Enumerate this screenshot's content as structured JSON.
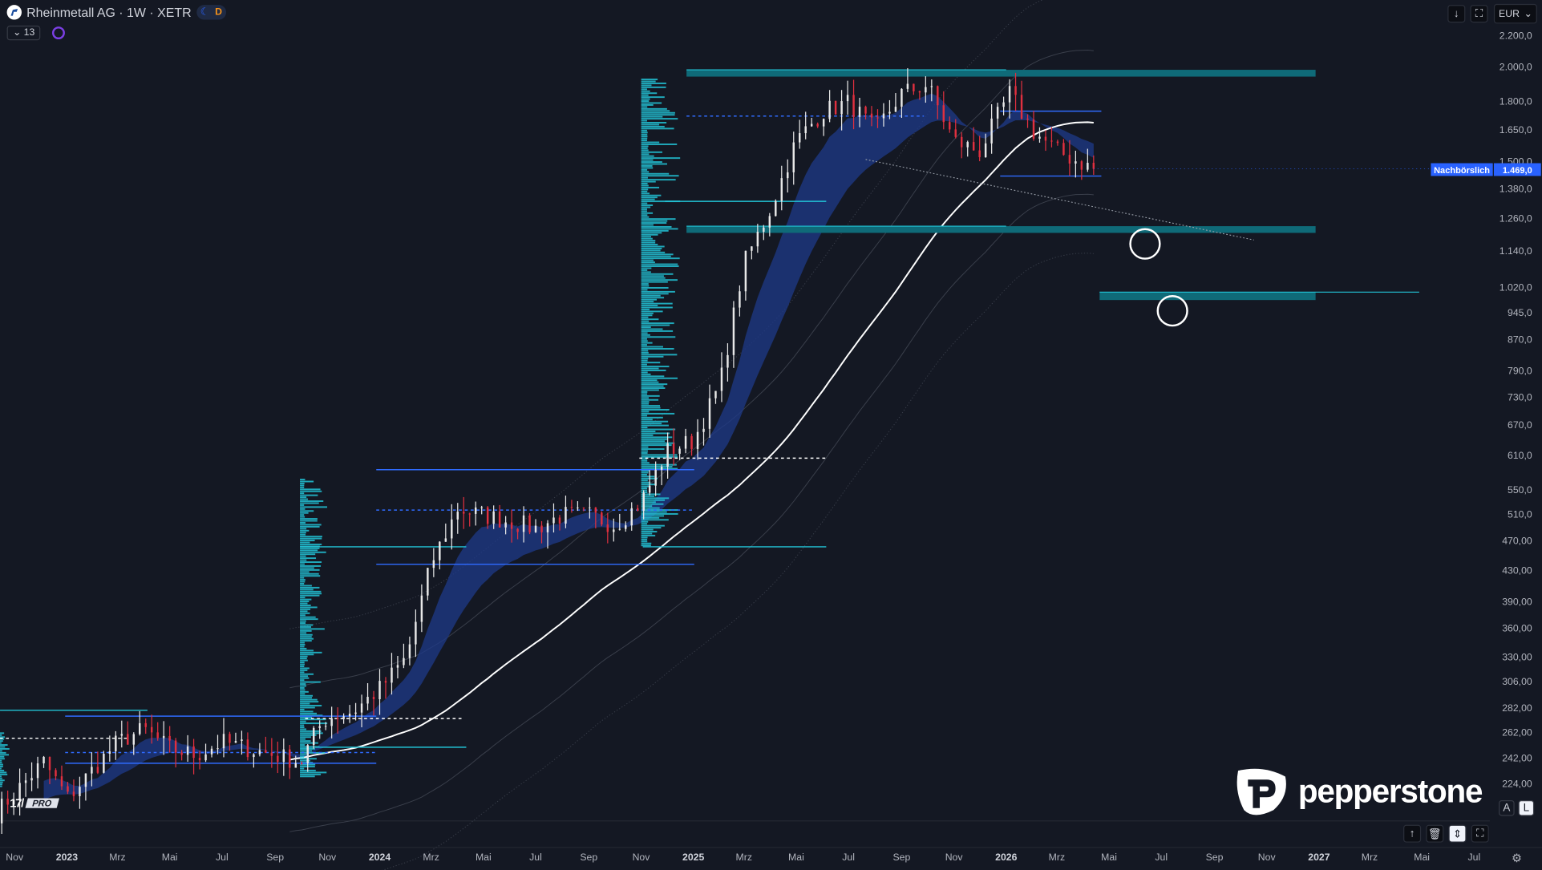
{
  "header": {
    "title": "Rheinmetall AG · 1W · XETR",
    "session_badge": "D",
    "indicators_count": "13"
  },
  "toolbar": {
    "currency": "EUR",
    "scale_labels": {
      "auto": "A",
      "log": "L"
    }
  },
  "icons": {
    "top": [
      "arrow-down-icon",
      "fullscreen-icon"
    ],
    "bottom": [
      "arrow-up-icon",
      "trash-icon",
      "expand-vertical-icon",
      "fullscreen-icon",
      "settings-icon"
    ]
  },
  "price_axis": {
    "scale": "log",
    "labels": [
      "2.200,0",
      "2.000,0",
      "1.800,0",
      "1.650,0",
      "1.500,0",
      "1.380,0",
      "1.260,0",
      "1.140,0",
      "1.020,0",
      "945,0",
      "870,0",
      "790,0",
      "730,0",
      "670,0",
      "610,0",
      "550,0",
      "510,0",
      "470,00",
      "430,00",
      "390,00",
      "360,00",
      "330,00",
      "306,00",
      "282,00",
      "262,00",
      "242,00",
      "224,00"
    ],
    "last_price": "1.469,0",
    "last_price_label": "Nachbörslich"
  },
  "time_axis": {
    "labels": [
      {
        "t": "Nov",
        "d": "2022-11-01"
      },
      {
        "t": "2023",
        "d": "2023-01-01",
        "year": true
      },
      {
        "t": "Mrz",
        "d": "2023-03-01"
      },
      {
        "t": "Mai",
        "d": "2023-05-01"
      },
      {
        "t": "Jul",
        "d": "2023-07-01"
      },
      {
        "t": "Sep",
        "d": "2023-09-01"
      },
      {
        "t": "Nov",
        "d": "2023-11-01"
      },
      {
        "t": "2024",
        "d": "2024-01-01",
        "year": true
      },
      {
        "t": "Mrz",
        "d": "2024-03-01"
      },
      {
        "t": "Mai",
        "d": "2024-05-01"
      },
      {
        "t": "Jul",
        "d": "2024-07-01"
      },
      {
        "t": "Sep",
        "d": "2024-09-01"
      },
      {
        "t": "Nov",
        "d": "2024-11-01"
      },
      {
        "t": "2025",
        "d": "2025-01-01",
        "year": true
      },
      {
        "t": "Mrz",
        "d": "2025-03-01"
      },
      {
        "t": "Mai",
        "d": "2025-05-01"
      },
      {
        "t": "Jul",
        "d": "2025-07-01"
      },
      {
        "t": "Sep",
        "d": "2025-09-01"
      },
      {
        "t": "Nov",
        "d": "2025-11-01"
      },
      {
        "t": "2026",
        "d": "2026-01-01",
        "year": true
      },
      {
        "t": "Mrz",
        "d": "2026-03-01"
      },
      {
        "t": "Mai",
        "d": "2026-05-01"
      },
      {
        "t": "Jul",
        "d": "2026-07-01"
      },
      {
        "t": "Sep",
        "d": "2026-09-01"
      },
      {
        "t": "Nov",
        "d": "2026-11-01"
      },
      {
        "t": "2027",
        "d": "2027-01-01",
        "year": true
      },
      {
        "t": "Mrz",
        "d": "2027-03-01"
      },
      {
        "t": "Mai",
        "d": "2027-05-01"
      },
      {
        "t": "Jul",
        "d": "2027-07-01"
      }
    ]
  },
  "branding": {
    "broker": "pepperstone",
    "platform": "PRO"
  },
  "colors": {
    "background": "#141823",
    "up": "#e8e8e8",
    "down": "#e0303f",
    "zone": "#0f6a78",
    "level_blue": "#2f6bff",
    "level_cyan": "#22c3d6",
    "ribbon": "#1e3a8a",
    "ma": "#ffffff",
    "last_price": "#2962ff"
  },
  "chart_data": {
    "type": "candlestick",
    "interval": "1W",
    "y_scale": "log",
    "closes_approx": [
      [
        "2022-10-10",
        205
      ],
      [
        "2022-11-07",
        222
      ],
      [
        "2022-12-05",
        240
      ],
      [
        "2023-01-02",
        215
      ],
      [
        "2023-02-01",
        235
      ],
      [
        "2023-03-01",
        255
      ],
      [
        "2023-04-01",
        265
      ],
      [
        "2023-05-01",
        250
      ],
      [
        "2023-06-01",
        245
      ],
      [
        "2023-07-01",
        255
      ],
      [
        "2023-08-01",
        250
      ],
      [
        "2023-09-01",
        245
      ],
      [
        "2023-10-01",
        240
      ],
      [
        "2023-10-20",
        265
      ],
      [
        "2023-11-01",
        275
      ],
      [
        "2023-12-01",
        280
      ],
      [
        "2024-01-01",
        300
      ],
      [
        "2024-02-01",
        330
      ],
      [
        "2024-03-01",
        440
      ],
      [
        "2024-04-01",
        520
      ],
      [
        "2024-05-01",
        510
      ],
      [
        "2024-06-01",
        500
      ],
      [
        "2024-07-01",
        490
      ],
      [
        "2024-08-01",
        510
      ],
      [
        "2024-09-01",
        510
      ],
      [
        "2024-10-01",
        495
      ],
      [
        "2024-11-01",
        530
      ],
      [
        "2024-12-01",
        620
      ],
      [
        "2025-01-01",
        640
      ],
      [
        "2025-02-01",
        760
      ],
      [
        "2025-03-01",
        1100
      ],
      [
        "2025-04-01",
        1300
      ],
      [
        "2025-05-01",
        1600
      ],
      [
        "2025-06-01",
        1750
      ],
      [
        "2025-07-01",
        1800
      ],
      [
        "2025-08-01",
        1650
      ],
      [
        "2025-09-01",
        1850
      ],
      [
        "2025-10-01",
        1900
      ],
      [
        "2025-11-01",
        1600
      ],
      [
        "2025-12-01",
        1550
      ],
      [
        "2026-01-05",
        1850
      ],
      [
        "2026-02-01",
        1650
      ],
      [
        "2026-03-01",
        1550
      ],
      [
        "2026-04-13",
        1469
      ]
    ],
    "zones": [
      {
        "from": "2024-12-24",
        "to": "2026-12-28",
        "high": 1988,
        "low": 1947
      },
      {
        "from": "2024-12-24",
        "to": "2026-12-28",
        "high": 1233,
        "low": 1208
      },
      {
        "from": "2026-04-20",
        "to": "2026-12-28",
        "high": 1008,
        "low": 984
      }
    ],
    "levels": [
      {
        "price": 1752,
        "from": "2025-12-25",
        "to": "2026-04-22",
        "style": "blue"
      },
      {
        "price": 1437,
        "from": "2025-12-25",
        "to": "2026-04-22",
        "style": "blue"
      },
      {
        "price": 1726,
        "from": "2024-12-24",
        "to": "2025-09-27",
        "style": "blue-dashed"
      },
      {
        "price": 1330,
        "from": "2024-11-29",
        "to": "2025-06-05",
        "style": "cyan"
      },
      {
        "price": 463,
        "from": "2024-11-03",
        "to": "2025-06-05",
        "style": "cyan"
      },
      {
        "price": 607,
        "from": "2024-10-30",
        "to": "2025-06-05",
        "style": "white-dashed"
      },
      {
        "price": 586,
        "from": "2023-12-28",
        "to": "2025-01-02",
        "style": "blue"
      },
      {
        "price": 439,
        "from": "2023-12-28",
        "to": "2025-01-02",
        "style": "blue"
      },
      {
        "price": 518,
        "from": "2023-12-28",
        "to": "2025-01-02",
        "style": "blue-dashed"
      },
      {
        "price": 463,
        "from": "2023-09-30",
        "to": "2024-04-11",
        "style": "cyan"
      },
      {
        "price": 251,
        "from": "2023-09-30",
        "to": "2024-04-11",
        "style": "cyan"
      },
      {
        "price": 274,
        "from": "2023-10-06",
        "to": "2024-04-06",
        "style": "white-dashed"
      },
      {
        "price": 281,
        "from": "2022-10-15",
        "to": "2023-04-05",
        "style": "cyan"
      },
      {
        "price": 276,
        "from": "2022-12-30",
        "to": "2023-12-28",
        "style": "blue"
      },
      {
        "price": 239,
        "from": "2022-12-30",
        "to": "2023-12-28",
        "style": "blue"
      },
      {
        "price": 247,
        "from": "2022-12-30",
        "to": "2023-12-28",
        "style": "blue-dashed"
      },
      {
        "price": 258,
        "from": "2022-10-15",
        "to": "2023-03-13",
        "style": "white-dashed"
      }
    ],
    "trendline": {
      "from": [
        "2025-07-21",
        1512
      ],
      "to": [
        "2026-10-17",
        1182
      ]
    },
    "targets": [
      {
        "date": "2026-06-12",
        "price": 1168
      },
      {
        "date": "2026-07-14",
        "price": 952
      }
    ]
  }
}
